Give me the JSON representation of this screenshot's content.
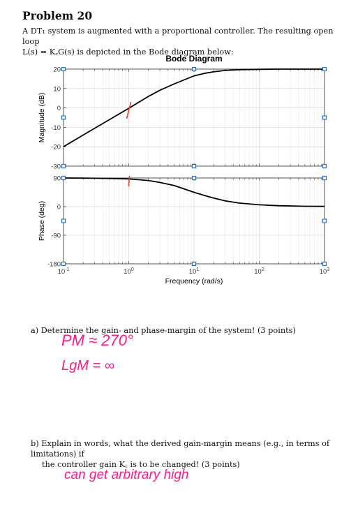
{
  "problem": {
    "title": "Problem 20",
    "intro_line1": "A DT₁ system is augmented with a proportional controller. The resulting open loop",
    "intro_line2": "L(s) = K꜀G(s) is depicted in the Bode diagram below:"
  },
  "chart_data": {
    "type": "line",
    "title": "Bode Diagram",
    "xlabel": "Frequency  (rad/s)",
    "xscale": "log",
    "xlim": [
      0.1,
      1000
    ],
    "x_ticks": [
      {
        "base": "10",
        "exp": "-1"
      },
      {
        "base": "10",
        "exp": "0"
      },
      {
        "base": "10",
        "exp": "1"
      },
      {
        "base": "10",
        "exp": "2"
      },
      {
        "base": "10",
        "exp": "3"
      }
    ],
    "grid": true,
    "panels": [
      {
        "ylabel": "Magnitude (dB)",
        "ylim": [
          -30,
          20
        ],
        "y_ticks": [
          "20",
          "10",
          "0",
          "-10",
          "-20",
          "-30"
        ],
        "y_tick_values": [
          20,
          10,
          0,
          -10,
          -20,
          -30
        ],
        "series": [
          {
            "x": [
              0.1,
              0.2,
              0.5,
              1,
              2,
              3,
              5,
              7,
              10,
              15,
              20,
              30,
              50,
              100,
              200,
              500,
              1000
            ],
            "y": [
              -20,
              -14,
              -6.1,
              -0.2,
              5.9,
              9.1,
              12.4,
              14.4,
              16.5,
              17.9,
              18.6,
              19.3,
              19.7,
              19.9,
              20,
              20,
              20
            ]
          }
        ]
      },
      {
        "ylabel": "Phase (deg)",
        "ylim": [
          -180,
          90
        ],
        "y_ticks": [
          "90",
          "0",
          "-90",
          "-180"
        ],
        "y_tick_values": [
          90,
          0,
          -90,
          -180
        ],
        "series": [
          {
            "x": [
              0.1,
              0.2,
              0.5,
              1,
              2,
              3,
              5,
              7,
              10,
              15,
              20,
              30,
              50,
              100,
              200,
              500,
              1000
            ],
            "y": [
              90,
              89.5,
              88.6,
              87,
              82,
              76,
              66,
              56,
              45,
              34,
              27,
              18,
              11,
              5.7,
              2.9,
              1.1,
              0.6
            ]
          }
        ]
      }
    ]
  },
  "questions": {
    "a_label": "a)",
    "a_text": "Determine the gain- and phase-margin of the system!   (3 points)",
    "b_label": "b)",
    "b_line1": "Explain in words, what the derived gain-margin means (e.g., in terms of limitations) if",
    "b_line2": "the controller gain K꜀ is to be changed!   (3 points)"
  },
  "handwriting": {
    "color": "#ff1a8c",
    "answer_pm": "PM ≈ 270°",
    "answer_gm": "LgM = ∞",
    "answer_b": "can get arbitrary high",
    "mark_color": "#e8402a"
  }
}
